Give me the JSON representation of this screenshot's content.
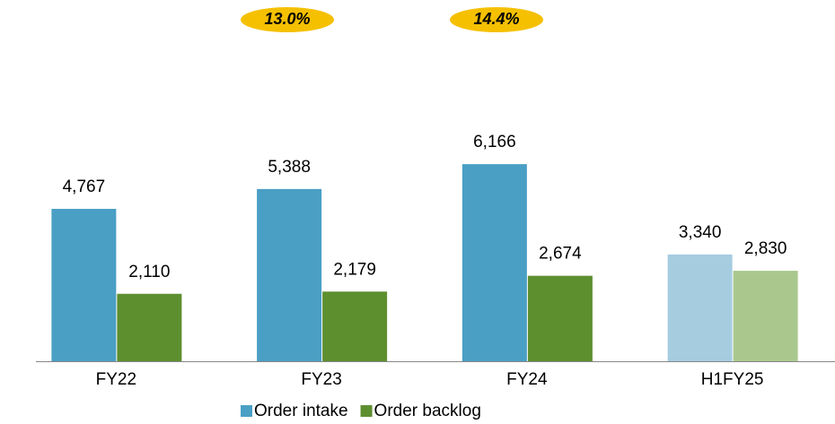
{
  "chart_data": {
    "type": "bar",
    "categories": [
      "FY22",
      "FY23",
      "FY24",
      "H1FY25"
    ],
    "series": [
      {
        "name": "Order intake",
        "color": "#4a9fc4",
        "colors": [
          "#4a9fc4",
          "#4a9fc4",
          "#4a9fc4",
          "#a6cce0"
        ],
        "values": [
          4767,
          5388,
          6166,
          3340
        ],
        "value_labels": [
          "4,767",
          "5,388",
          "6,166",
          "3,340"
        ]
      },
      {
        "name": "Order backlog",
        "color": "#5e8f2f",
        "colors": [
          "#5e8f2f",
          "#5e8f2f",
          "#5e8f2f",
          "#aac88e"
        ],
        "values": [
          2110,
          2179,
          2674,
          2830
        ],
        "value_labels": [
          "2,110",
          "2,179",
          "2,674",
          "2,830"
        ]
      }
    ],
    "annotations": [
      "13.0%",
      "14.4%"
    ],
    "legend": "bottom"
  }
}
